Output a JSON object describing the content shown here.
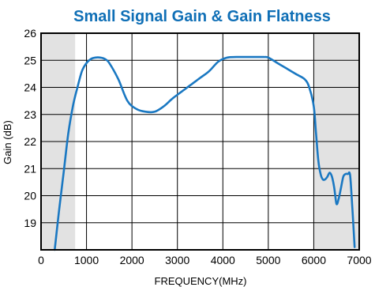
{
  "chart_data": {
    "type": "line",
    "title": "Small Signal Gain & Gain Flatness",
    "xlabel": "FREQUENCY(MHz)",
    "ylabel": "Gain (dB)",
    "xlim": [
      0,
      7000
    ],
    "ylim": [
      18,
      26
    ],
    "xticks": [
      0,
      1000,
      2000,
      3000,
      4000,
      5000,
      6000,
      7000
    ],
    "yticks": [
      19,
      20,
      21,
      22,
      23,
      24,
      25,
      26
    ],
    "grid": true,
    "shaded_regions": [
      [
        0,
        750
      ],
      [
        6000,
        7000
      ]
    ],
    "colors": {
      "line": "#1a78c2",
      "title": "#0f6fb6",
      "shade": "#e2e2e2"
    },
    "series": [
      {
        "x": [
          300,
          400,
          500,
          600,
          700,
          800,
          900,
          1000,
          1100,
          1200,
          1300,
          1400,
          1500,
          1700,
          1900,
          2100,
          2300,
          2500,
          2700,
          2900,
          3100,
          3300,
          3500,
          3700,
          3900,
          4100,
          4300,
          4500,
          4700,
          4900,
          5000,
          5200,
          5400,
          5600,
          5800,
          5900,
          6000,
          6050,
          6100,
          6150,
          6200,
          6250,
          6300,
          6350,
          6400,
          6450,
          6500,
          6550,
          6600,
          6650,
          6700,
          6750,
          6800,
          6850,
          6900
        ],
        "values": [
          18.0,
          19.5,
          20.9,
          22.3,
          23.3,
          24.0,
          24.6,
          24.9,
          25.05,
          25.1,
          25.1,
          25.05,
          24.9,
          24.3,
          23.5,
          23.2,
          23.1,
          23.1,
          23.3,
          23.6,
          23.85,
          24.1,
          24.35,
          24.6,
          24.95,
          25.1,
          25.12,
          25.12,
          25.12,
          25.12,
          25.1,
          24.9,
          24.7,
          24.5,
          24.3,
          24.0,
          23.3,
          22.3,
          21.3,
          20.8,
          20.6,
          20.6,
          20.7,
          20.85,
          20.7,
          20.3,
          19.7,
          19.9,
          20.3,
          20.7,
          20.8,
          20.8,
          20.75,
          19.5,
          18.1
        ]
      }
    ]
  }
}
